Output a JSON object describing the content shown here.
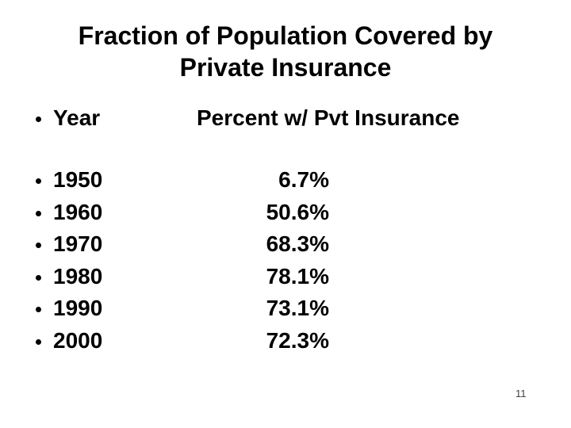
{
  "slide": {
    "title": {
      "line1": "Fraction of Population Covered by",
      "line2": "Private Insurance"
    },
    "header": {
      "year_label": "Year",
      "percent_label": "Percent w/ Pvt Insurance"
    },
    "rows": [
      {
        "year": "1950",
        "percent": "6.7%"
      },
      {
        "year": "1960",
        "percent": "50.6%"
      },
      {
        "year": "1970",
        "percent": "68.3%"
      },
      {
        "year": "1980",
        "percent": "78.1%"
      },
      {
        "year": "1990",
        "percent": "73.1%"
      },
      {
        "year": "2000",
        "percent": "72.3%"
      }
    ],
    "page_number": "11",
    "colors": {
      "text": "#000000",
      "background": "#ffffff",
      "page_number": "#444444"
    }
  }
}
